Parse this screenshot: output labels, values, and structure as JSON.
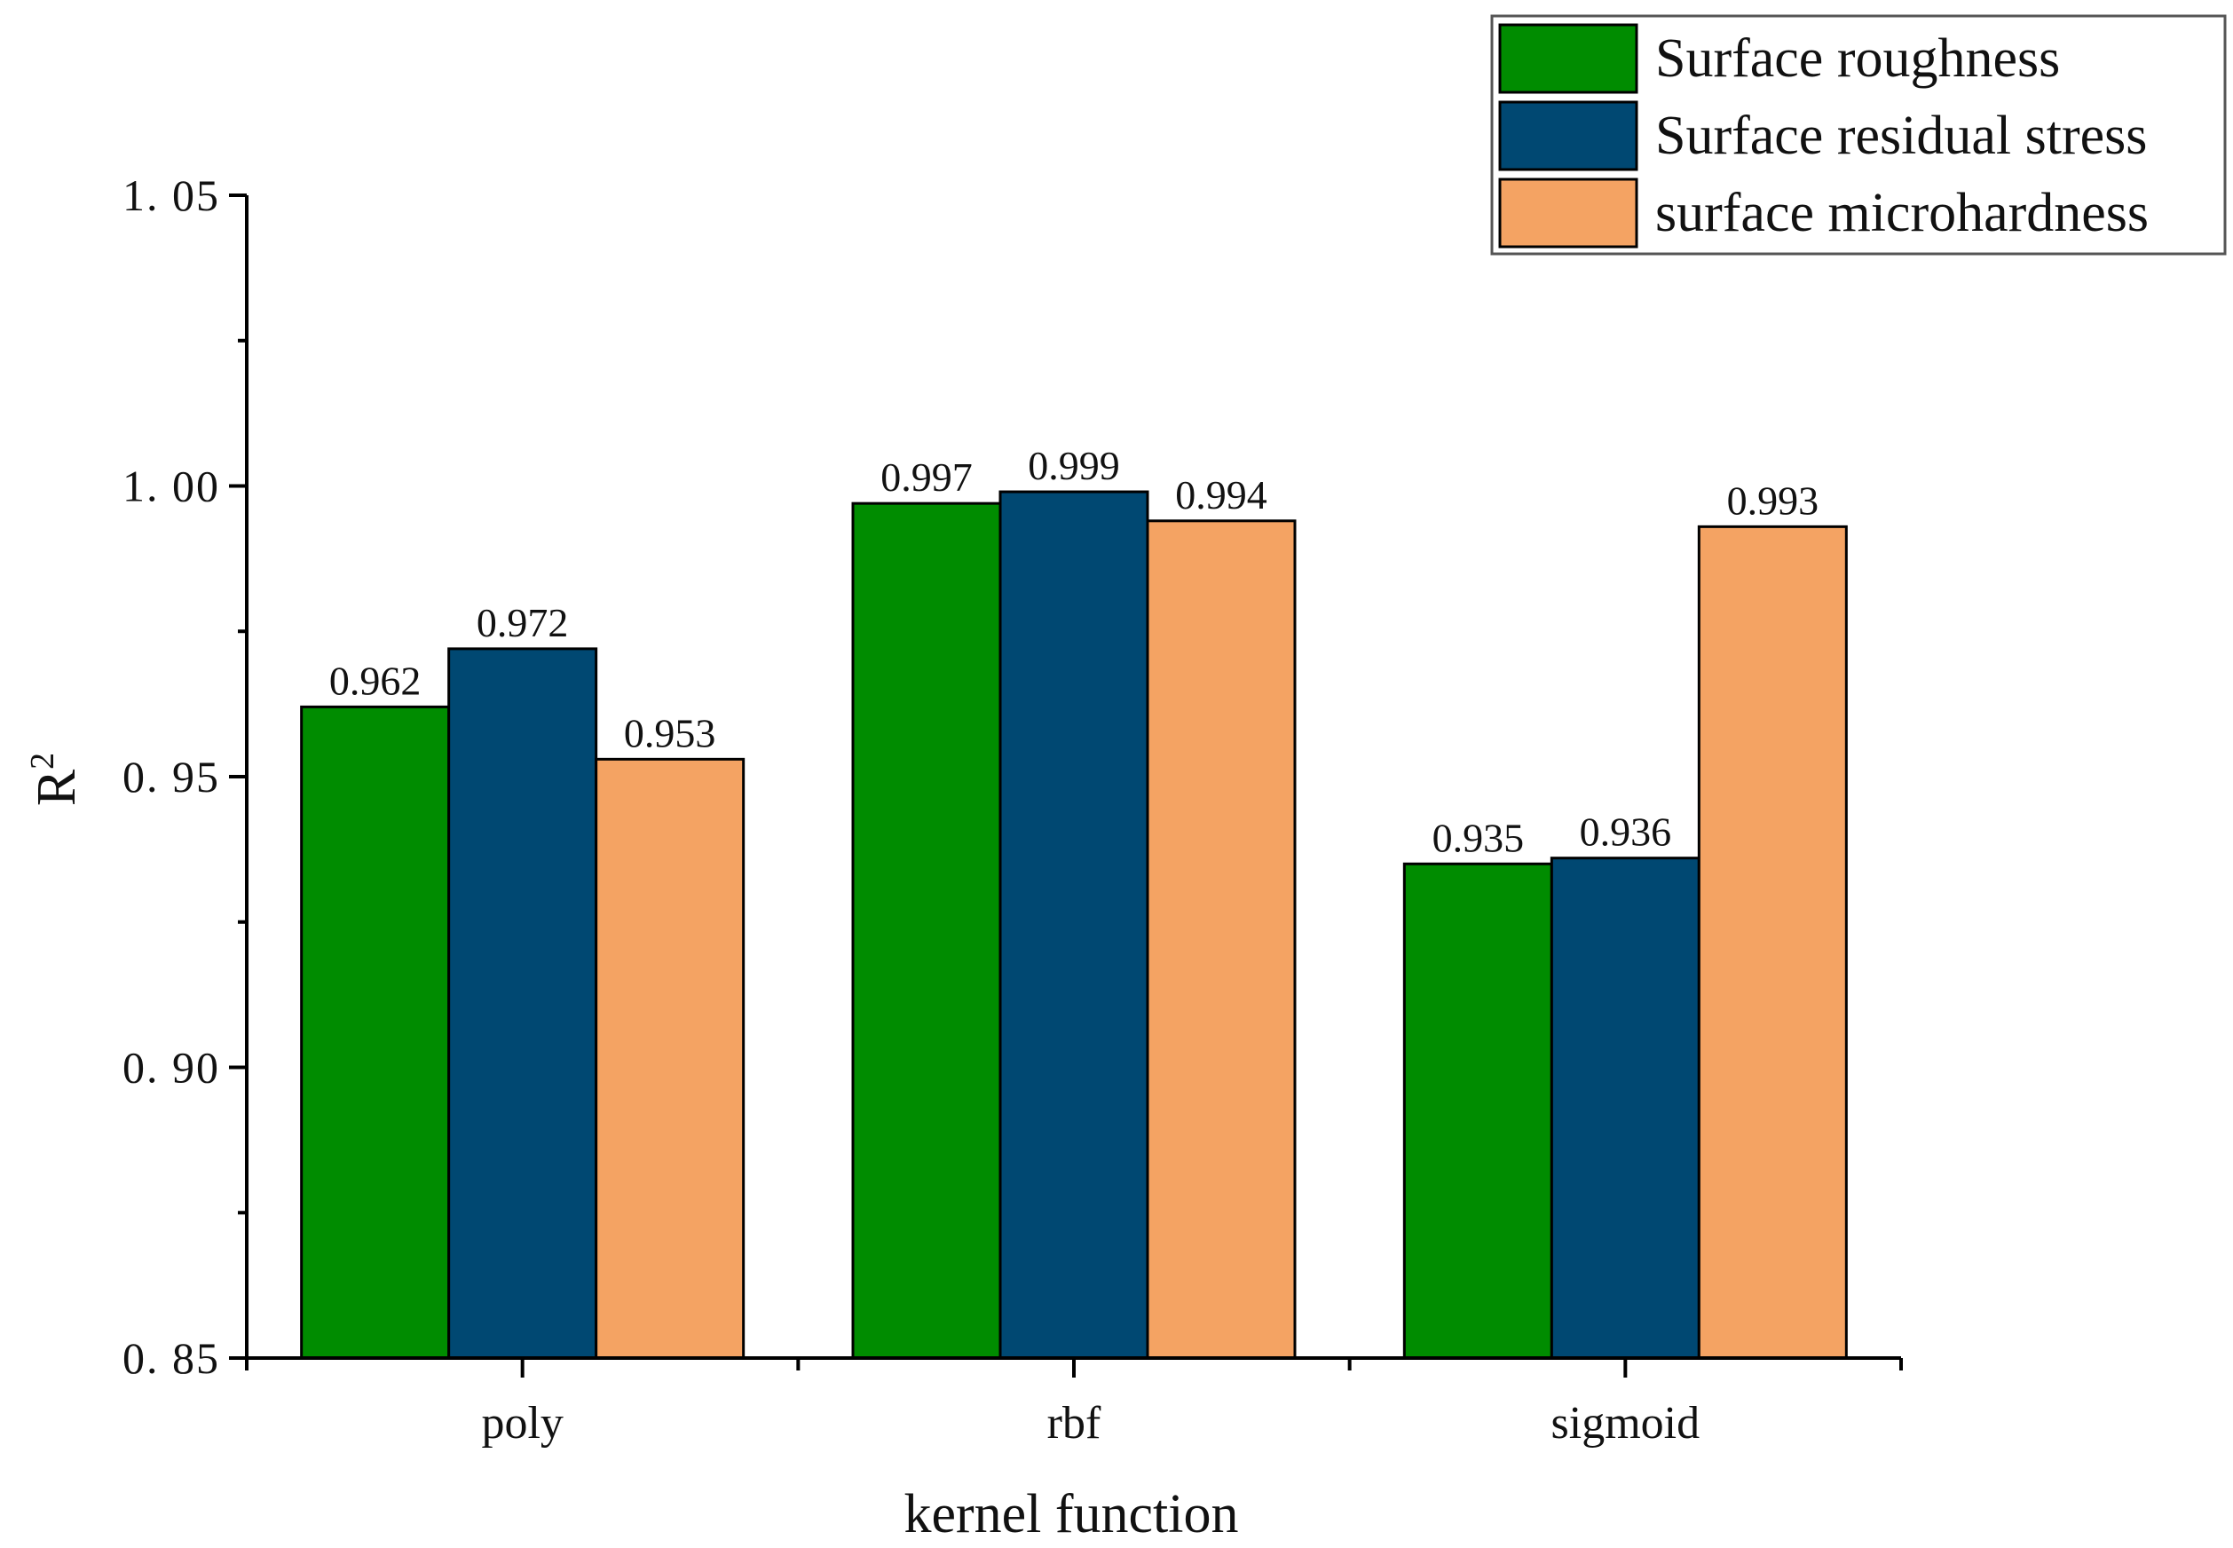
{
  "chart_data": {
    "type": "bar",
    "title": "",
    "xlabel": "kernel function",
    "ylabel": "R",
    "ylabel_superscript": "2",
    "categories": [
      "poly",
      "rbf",
      "sigmoid"
    ],
    "series": [
      {
        "name": "Surface roughness",
        "color": "#008C00",
        "values": [
          0.962,
          0.997,
          0.935
        ],
        "labels": [
          "0.962",
          "0.997",
          "0.935"
        ]
      },
      {
        "name": "Surface residual stress",
        "color": "#004872",
        "values": [
          0.972,
          0.999,
          0.936
        ],
        "labels": [
          "0.972",
          "0.999",
          "0.936"
        ]
      },
      {
        "name": "surface microhardness",
        "color": "#F4A363",
        "values": [
          0.953,
          0.994,
          0.993
        ],
        "labels": [
          "0.953",
          "0.994",
          "0.993"
        ]
      }
    ],
    "ylim": [
      0.85,
      1.05
    ],
    "yticks": [
      0.85,
      0.9,
      0.95,
      1.0,
      1.05
    ],
    "ytick_labels": [
      "0. 85",
      "0. 90",
      "0. 95",
      "1. 00",
      "1. 05"
    ],
    "yminor_step": 0.025,
    "grid": false,
    "legend_position": "top-right"
  }
}
